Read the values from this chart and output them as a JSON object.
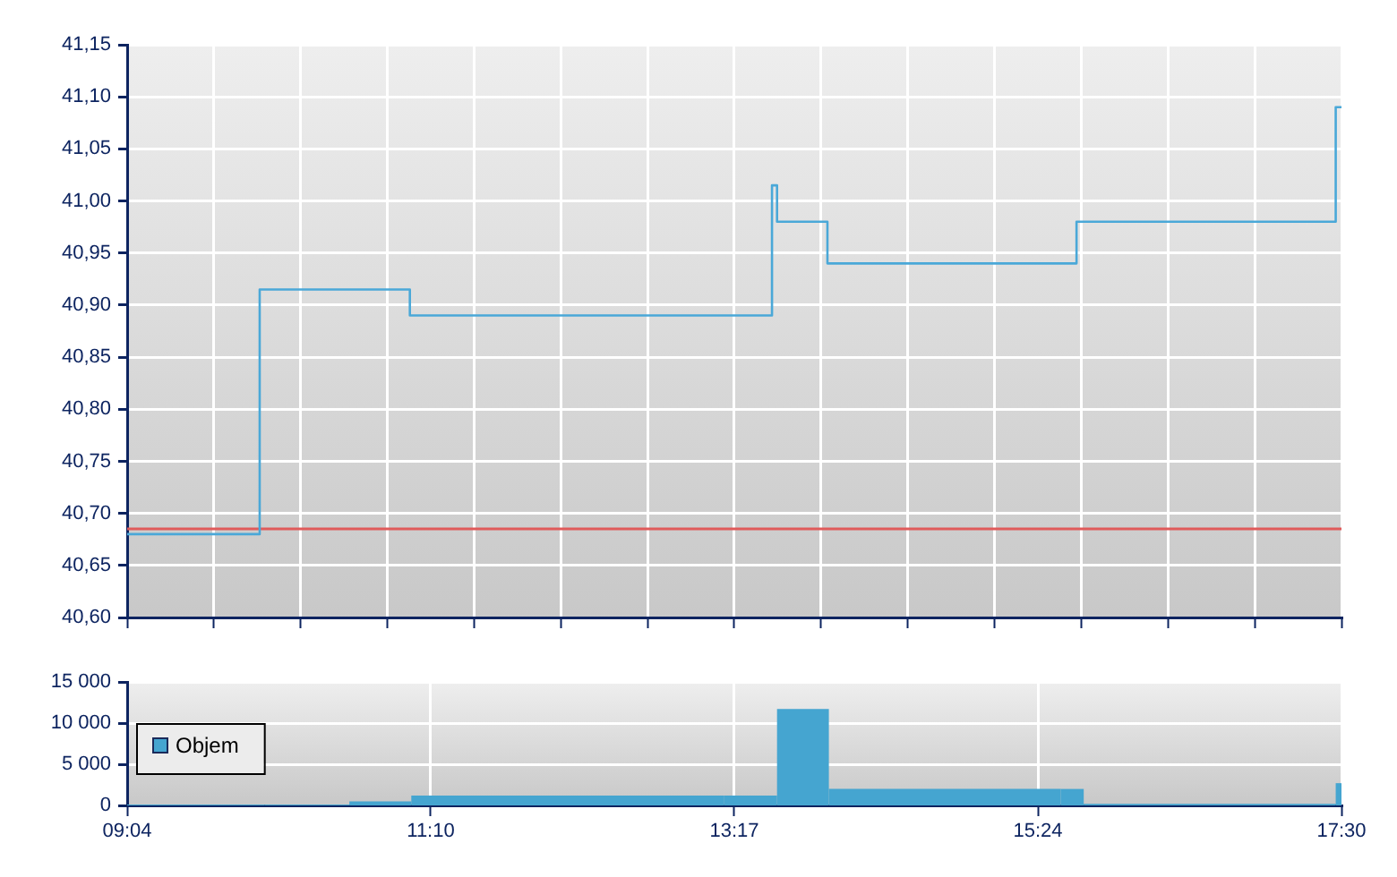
{
  "chart_data": [
    {
      "type": "step",
      "x": [
        9.0667,
        9.987,
        11.03,
        13.545,
        13.58,
        13.93,
        15.66,
        17.46,
        17.5
      ],
      "series": [
        {
          "color": "#4aa8d8",
          "values": [
            40.68,
            40.915,
            40.89,
            41.015,
            40.98,
            40.94,
            40.98,
            41.09,
            41.09
          ]
        }
      ],
      "xlim": [
        9.0667,
        17.5
      ],
      "xticks": [
        {
          "value": 9.0667,
          "label": null
        },
        {
          "value": 9.669,
          "label": null
        },
        {
          "value": 10.271,
          "label": null
        },
        {
          "value": 10.874,
          "label": null
        },
        {
          "value": 11.476,
          "label": null
        },
        {
          "value": 12.079,
          "label": null
        },
        {
          "value": 12.681,
          "label": null
        },
        {
          "value": 13.283,
          "label": null
        },
        {
          "value": 13.886,
          "label": null
        },
        {
          "value": 14.488,
          "label": null
        },
        {
          "value": 15.09,
          "label": null
        },
        {
          "value": 15.693,
          "label": null
        },
        {
          "value": 16.295,
          "label": null
        },
        {
          "value": 16.898,
          "label": null
        },
        {
          "value": 17.5,
          "label": null
        }
      ],
      "ylim": [
        40.6,
        41.15
      ],
      "yticks": [
        {
          "value": 40.6,
          "label": "40,60"
        },
        {
          "value": 40.65,
          "label": "40,65"
        },
        {
          "value": 40.7,
          "label": "40,70"
        },
        {
          "value": 40.75,
          "label": "40,75"
        },
        {
          "value": 40.8,
          "label": "40,80"
        },
        {
          "value": 40.85,
          "label": "40,85"
        },
        {
          "value": 40.9,
          "label": "40,90"
        },
        {
          "value": 40.95,
          "label": "40,95"
        },
        {
          "value": 41,
          "label": "41,00"
        },
        {
          "value": 41.05,
          "label": "41,05"
        },
        {
          "value": 41.1,
          "label": "41,10"
        },
        {
          "value": 41.15,
          "label": "41,15"
        }
      ],
      "tick_labels": "y",
      "grid": true,
      "marker": "none",
      "ref_lines": [
        {
          "axis": "y",
          "value": 40.685,
          "color": "#e05a5a"
        }
      ]
    },
    {
      "type": "histogram",
      "bins": [
        9.0667,
        10.02,
        10.61,
        11.04,
        13.21,
        13.58,
        13.94,
        15.55,
        15.71,
        17.46,
        17.5
      ],
      "series": [
        {
          "name": "Objem",
          "color": "#45a5d0",
          "values": [
            100,
            100,
            500,
            1200,
            1200,
            11700,
            2000,
            2000,
            200,
            2700
          ]
        }
      ],
      "xlim": [
        9.0667,
        17.5
      ],
      "xticks": [
        {
          "value": 9.0667,
          "label": "09:04"
        },
        {
          "value": 11.175,
          "label": "11:10"
        },
        {
          "value": 13.283,
          "label": "13:17"
        },
        {
          "value": 15.392,
          "label": "15:24"
        },
        {
          "value": 17.5,
          "label": "17:30"
        }
      ],
      "ylim": [
        0,
        15000
      ],
      "yticks": [
        0,
        {
          "value": 5000,
          "label": "5 000"
        },
        {
          "value": 10000,
          "label": "10 000"
        },
        {
          "value": 15000,
          "label": "15 000"
        }
      ],
      "grid": true,
      "legend": "bottom left"
    }
  ]
}
